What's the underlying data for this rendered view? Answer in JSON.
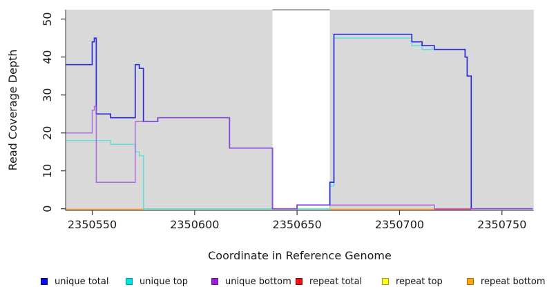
{
  "figure": {
    "background": "#ffffff",
    "axis_color": "#333333",
    "text_color": "#1a1a1a"
  },
  "chart_data": {
    "type": "line",
    "subtype": "step-coverage-plot",
    "title": "",
    "xlabel": "Coordinate in Reference Genome",
    "ylabel": "Read Coverage Depth",
    "x_ticks": [
      2350550,
      2350600,
      2350650,
      2350700,
      2350750
    ],
    "y_ticks": [
      0,
      10,
      20,
      30,
      40,
      50
    ],
    "x_range": [
      2350537,
      2350765
    ],
    "ylim": [
      0,
      50
    ],
    "grid": false,
    "panel_bg": "#d9d9d9",
    "gap_region": {
      "start": 2350638,
      "end": 2350666,
      "fill": "#ffffff",
      "top_edge_color": "#9b9b9b"
    },
    "legend_position": "bottom",
    "series": [
      {
        "name": "unique total",
        "line_color": "#2a2ad6",
        "legend_color": "#0a0ae8",
        "legend_border": "#0000a0",
        "steps": [
          [
            2350537,
            38
          ],
          [
            2350550,
            44
          ],
          [
            2350551,
            45
          ],
          [
            2350552,
            25
          ],
          [
            2350559,
            24
          ],
          [
            2350571,
            38
          ],
          [
            2350573,
            37
          ],
          [
            2350575,
            23
          ],
          [
            2350582,
            24
          ],
          [
            2350617,
            16
          ],
          [
            2350638,
            0
          ],
          [
            2350650,
            1
          ],
          [
            2350666,
            7
          ],
          [
            2350668,
            46
          ],
          [
            2350706,
            44
          ],
          [
            2350711,
            43
          ],
          [
            2350717,
            42
          ],
          [
            2350732,
            40
          ],
          [
            2350733,
            35
          ],
          [
            2350735,
            0
          ],
          [
            2350765,
            0
          ]
        ]
      },
      {
        "name": "unique top",
        "line_color": "#5fdede",
        "legend_color": "#00e2e2",
        "legend_border": "#009999",
        "steps": [
          [
            2350537,
            18
          ],
          [
            2350559,
            17
          ],
          [
            2350571,
            15
          ],
          [
            2350573,
            14
          ],
          [
            2350575,
            0
          ],
          [
            2350666,
            6
          ],
          [
            2350668,
            45
          ],
          [
            2350706,
            43
          ],
          [
            2350711,
            42
          ],
          [
            2350732,
            40
          ],
          [
            2350733,
            35
          ],
          [
            2350735,
            0
          ],
          [
            2350765,
            0
          ]
        ]
      },
      {
        "name": "unique bottom",
        "line_color": "rgba(164,78,219,0.8)",
        "legend_color": "#a01ed2",
        "legend_border": "#6e1392",
        "steps": [
          [
            2350537,
            20
          ],
          [
            2350550,
            26
          ],
          [
            2350551,
            27
          ],
          [
            2350552,
            7
          ],
          [
            2350571,
            23
          ],
          [
            2350582,
            24
          ],
          [
            2350617,
            16
          ],
          [
            2350638,
            0
          ],
          [
            2350650,
            1
          ],
          [
            2350717,
            0
          ],
          [
            2350765,
            0
          ]
        ]
      },
      {
        "name": "repeat total",
        "line_color": "#dd4466",
        "legend_color": "#ee1111",
        "legend_border": "#990000",
        "steps": [
          [
            2350717,
            0
          ],
          [
            2350735,
            0
          ]
        ]
      },
      {
        "name": "repeat top",
        "line_color": "#a4d9a0",
        "legend_color": "#ffff26",
        "legend_border": "#a8a000",
        "steps": [
          [
            2350575,
            0
          ],
          [
            2350666,
            0
          ]
        ]
      },
      {
        "name": "repeat bottom",
        "line_color": "#ff9d30",
        "legend_color": "#ffa513",
        "legend_border": "#b36b00",
        "steps": [
          [
            2350537,
            0
          ],
          [
            2350575,
            null
          ],
          [
            2350666,
            0
          ],
          [
            2350717,
            null
          ]
        ]
      }
    ]
  }
}
